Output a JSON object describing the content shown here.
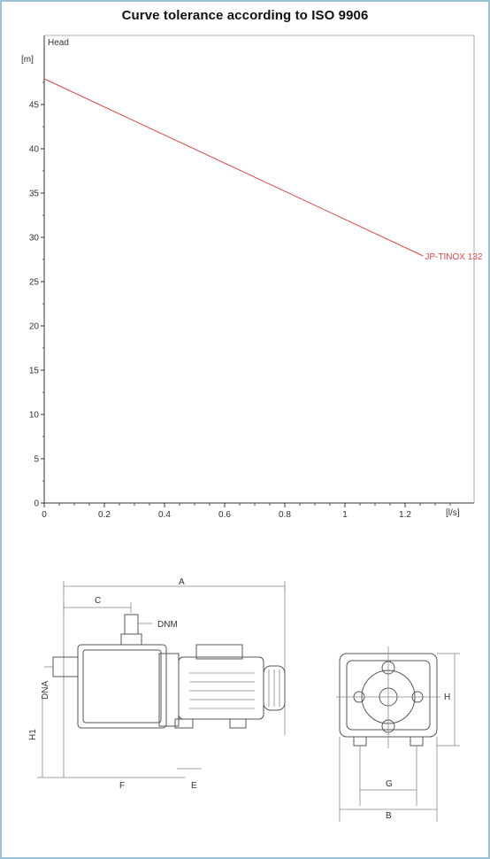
{
  "chart_data": {
    "type": "line",
    "title": "Curve tolerance according to ISO 9906",
    "ylabel": "[m]",
    "xlabel": "[l/s]",
    "panel_label": "Head",
    "xlim": [
      0,
      1.4
    ],
    "ylim": [
      0,
      50
    ],
    "x_ticks": [
      "0",
      "0.2",
      "0.4",
      "0.6",
      "0.8",
      "1",
      "1.2"
    ],
    "y_ticks": [
      "0",
      "5",
      "10",
      "15",
      "20",
      "25",
      "30",
      "35",
      "40",
      "45"
    ],
    "grid": false,
    "series": [
      {
        "name": "JP-TINOX 132",
        "color": "#e04848",
        "x": [
          0,
          1.26
        ],
        "y": [
          47.9,
          27.9
        ]
      }
    ]
  },
  "drawing": {
    "labels": {
      "a": "A",
      "c": "C",
      "dnm": "DNM",
      "dna": "DNA",
      "h1": "H1",
      "f": "F",
      "e": "E",
      "h": "H",
      "g": "G",
      "b": "B"
    }
  }
}
